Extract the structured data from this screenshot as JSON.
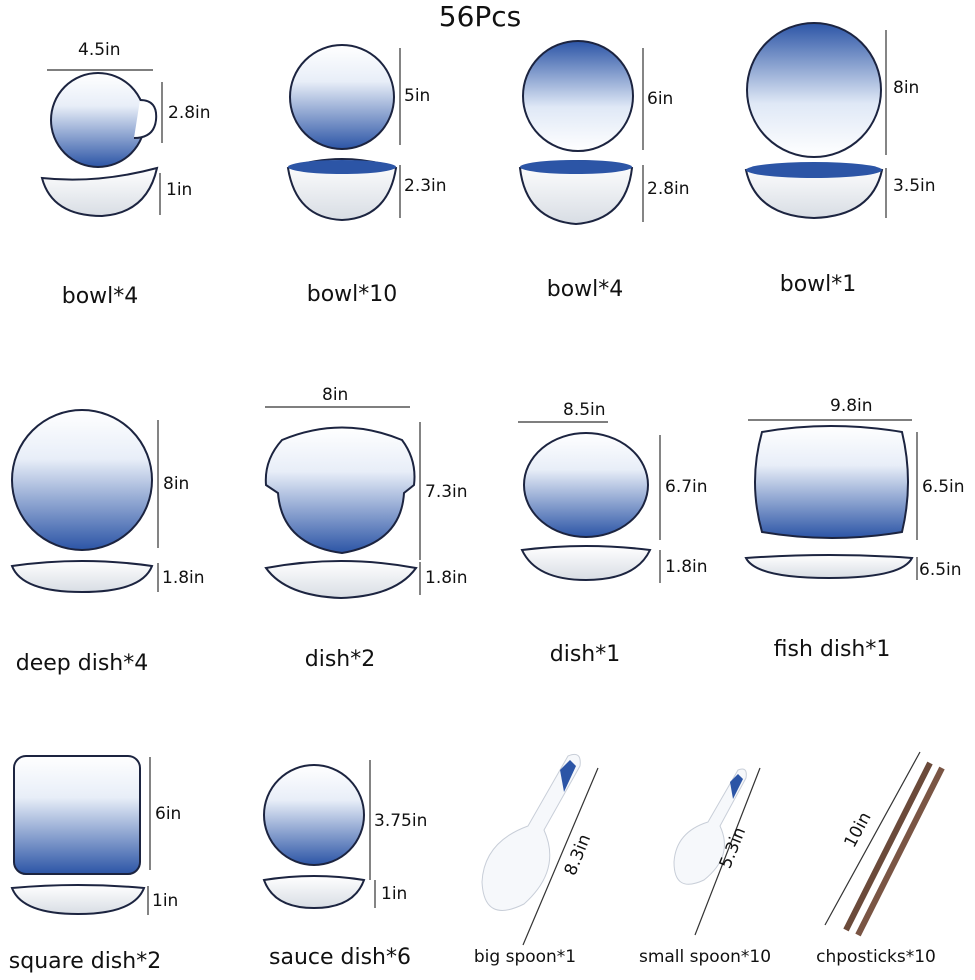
{
  "title": "56Pcs",
  "items": [
    {
      "label": "bowl*4",
      "dims": [
        "4.5in",
        "2.8in",
        "1in"
      ]
    },
    {
      "label": "bowl*10",
      "dims": [
        "5in",
        "2.3in"
      ]
    },
    {
      "label": "bowl*4",
      "dims": [
        "6in",
        "2.8in"
      ]
    },
    {
      "label": "bowl*1",
      "dims": [
        "8in",
        "3.5in"
      ]
    },
    {
      "label": "deep dish*4",
      "dims": [
        "8in",
        "1.8in"
      ]
    },
    {
      "label": "dish*2",
      "dims": [
        "8in",
        "7.3in",
        "1.8in"
      ]
    },
    {
      "label": "dish*1",
      "dims": [
        "8.5in",
        "6.7in",
        "1.8in"
      ]
    },
    {
      "label": "fish dish*1",
      "dims": [
        "9.8in",
        "6.5in",
        "6.5in"
      ]
    },
    {
      "label": "square dish*2",
      "dims": [
        "6in",
        "1in"
      ]
    },
    {
      "label": "sauce dish*6",
      "dims": [
        "3.75in",
        "1in"
      ]
    },
    {
      "label": "big spoon*1",
      "dims": [
        "8.3in"
      ]
    },
    {
      "label": "small spoon*10",
      "dims": [
        "5.3in"
      ]
    },
    {
      "label": "chposticks*10",
      "dims": [
        "10in"
      ]
    }
  ]
}
